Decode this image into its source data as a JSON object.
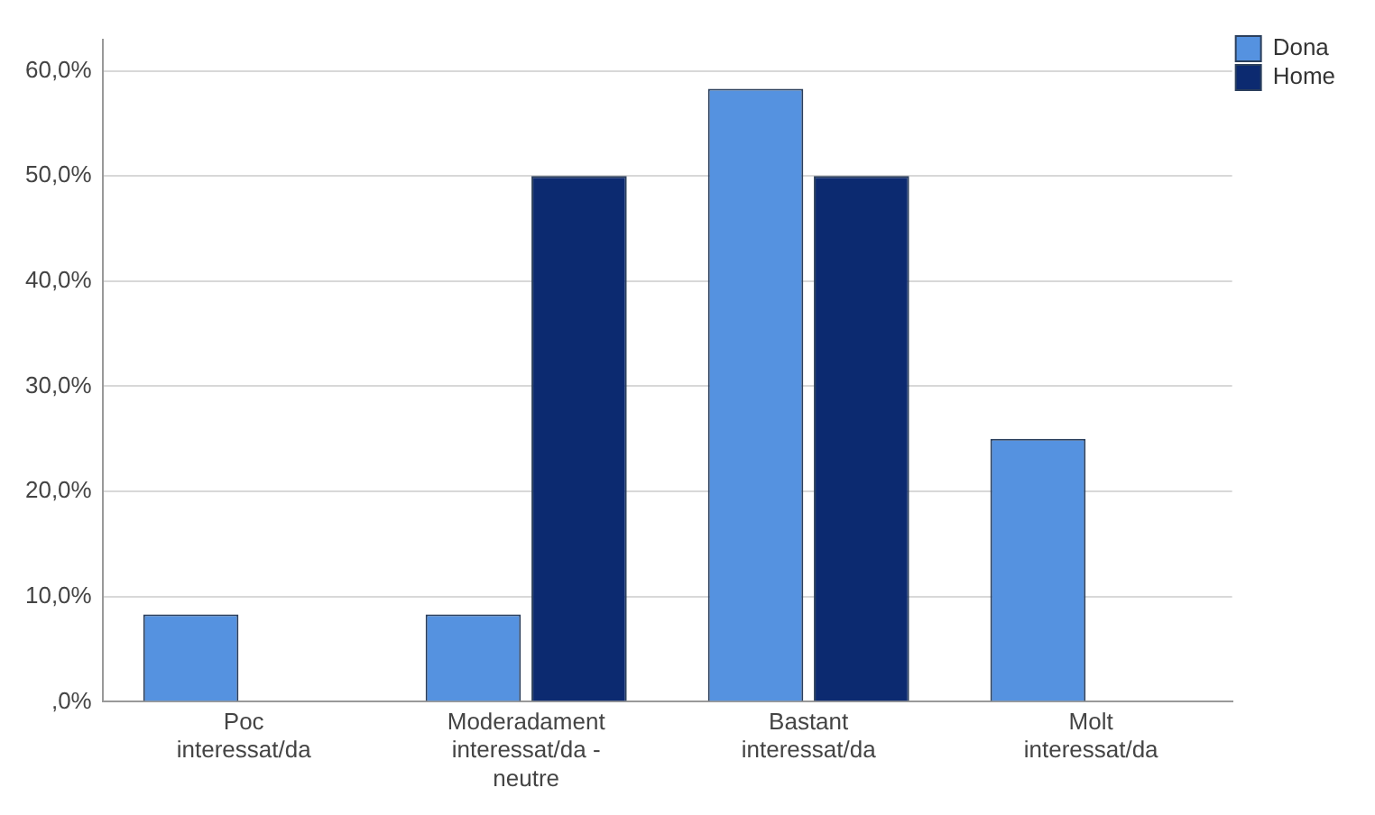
{
  "chart_data": {
    "type": "bar",
    "categories": [
      "Poc interessat/da",
      "Moderadament interessat/da - neutre",
      "Bastant interessat/da",
      "Molt interessat/da"
    ],
    "series": [
      {
        "name": "Dona",
        "color": "#5592e0",
        "values": [
          8.3,
          8.3,
          58.3,
          25.0
        ]
      },
      {
        "name": "Home",
        "color": "#0c2a70",
        "values": [
          0,
          50,
          50,
          0
        ]
      }
    ],
    "ylim": [
      0,
      63
    ],
    "yticks": [
      {
        "value": 0,
        "label": ",0%"
      },
      {
        "value": 10,
        "label": "10,0%"
      },
      {
        "value": 20,
        "label": "20,0%"
      },
      {
        "value": 30,
        "label": "30,0%"
      },
      {
        "value": 40,
        "label": "40,0%"
      },
      {
        "value": 50,
        "label": "50,0%"
      },
      {
        "value": 60,
        "label": "60,0%"
      }
    ],
    "grid": "y",
    "legend": "top right"
  }
}
